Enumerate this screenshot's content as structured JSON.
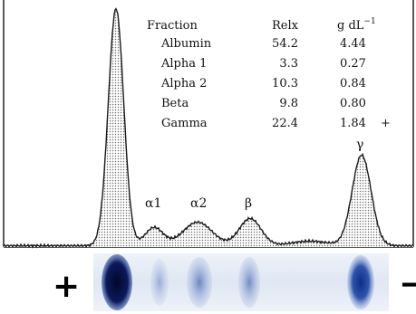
{
  "chart_data": {
    "type": "area",
    "title": "",
    "xlabel": "",
    "ylabel": "",
    "grid": false,
    "legend": "none",
    "table": {
      "headers": {
        "fraction": "Fraction",
        "relx": "Relx",
        "gdl": "g dL",
        "gdl_exp": "−1"
      },
      "rows": [
        {
          "fraction": "Albumin",
          "relx": "54.2",
          "gdl": "4.44",
          "flag": ""
        },
        {
          "fraction": "Alpha  1",
          "relx": "3.3",
          "gdl": "0.27",
          "flag": ""
        },
        {
          "fraction": "Alpha  2",
          "relx": "10.3",
          "gdl": "0.84",
          "flag": ""
        },
        {
          "fraction": "Beta",
          "relx": "9.8",
          "gdl": "0.80",
          "flag": ""
        },
        {
          "fraction": "Gamma",
          "relx": "22.4",
          "gdl": "1.84",
          "flag": "+"
        }
      ]
    },
    "peak_labels": [
      "α1",
      "α2",
      "β",
      "γ"
    ],
    "gel": {
      "positive": "+",
      "negative": "−"
    },
    "colors": {
      "trace": "#1a1a1a",
      "fill_dots": "#7a7a7a",
      "gel": "#1c3c8c"
    }
  }
}
